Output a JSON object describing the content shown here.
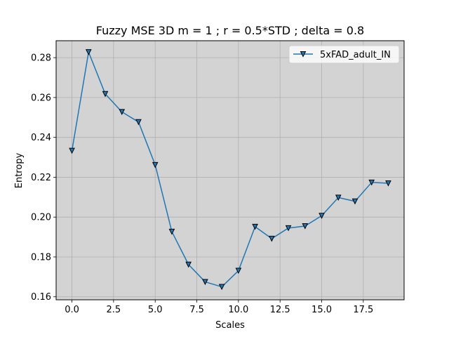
{
  "chart_data": {
    "type": "line",
    "title": "Fuzzy MSE 3D m = 1 ; r = 0.5*STD ; delta = 0.8",
    "xlabel": "Scales",
    "ylabel": "Entropy",
    "xlim": [
      -0.95,
      19.95
    ],
    "ylim": [
      0.1585,
      0.2885
    ],
    "xticks": [
      0.0,
      2.5,
      5.0,
      7.5,
      10.0,
      12.5,
      15.0,
      17.5
    ],
    "xtick_labels": [
      "0.0",
      "2.5",
      "5.0",
      "7.5",
      "10.0",
      "12.5",
      "15.0",
      "17.5"
    ],
    "yticks": [
      0.16,
      0.18,
      0.2,
      0.22,
      0.24,
      0.26,
      0.28
    ],
    "ytick_labels": [
      "0.16",
      "0.18",
      "0.20",
      "0.22",
      "0.24",
      "0.26",
      "0.28"
    ],
    "grid": true,
    "legend_position": "top-right",
    "plot_background": "#d3d3d3",
    "series": [
      {
        "name": "5xFAD_adult_IN",
        "color": "#1f77b4",
        "marker": "triangle-down",
        "x": [
          0,
          1,
          2,
          3,
          4,
          5,
          6,
          7,
          8,
          9,
          10,
          11,
          12,
          13,
          14,
          15,
          16,
          17,
          18,
          19
        ],
        "y": [
          0.2333,
          0.2828,
          0.2618,
          0.2528,
          0.2477,
          0.2262,
          0.1927,
          0.1762,
          0.1675,
          0.165,
          0.1731,
          0.1952,
          0.1892,
          0.1945,
          0.1955,
          0.2007,
          0.2098,
          0.2079,
          0.2174,
          0.217
        ]
      }
    ]
  }
}
